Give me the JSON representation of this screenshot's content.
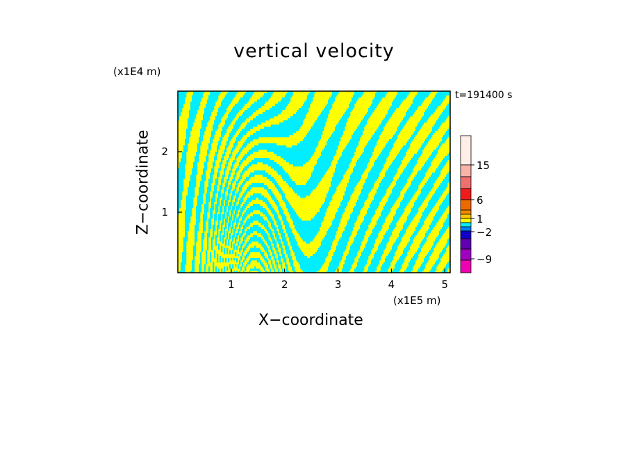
{
  "chart_data": {
    "type": "heatmap",
    "title": "vertical velocity",
    "time_label": "t=191400 s",
    "x_axis": {
      "label": "X−coordinate",
      "unit_label": "(x1E5 m)",
      "ticks": [
        "1",
        "2",
        "3",
        "4",
        "5"
      ],
      "range": [
        0,
        5.1
      ]
    },
    "y_axis": {
      "label": "Z−coordinate",
      "unit_label": "(x1E4 m)",
      "ticks": [
        "1",
        "2"
      ],
      "range": [
        0,
        3
      ]
    },
    "grid": false,
    "legend": "colorbar, right",
    "colorbar": {
      "labels": [
        "15",
        "6",
        "1",
        "−2",
        "−9"
      ],
      "colors": [
        "#ffeee8",
        "#f8b4a8",
        "#f07070",
        "#ee1c1c",
        "#ee6a00",
        "#f08c00",
        "#ffc800",
        "#ffff00",
        "#00eeff",
        "#0080ff",
        "#1000c8",
        "#6000b0",
        "#a000c0",
        "#ee00b0"
      ]
    },
    "field_colors": {
      "positive": "#ffff00",
      "negative": "#00eeff"
    }
  }
}
